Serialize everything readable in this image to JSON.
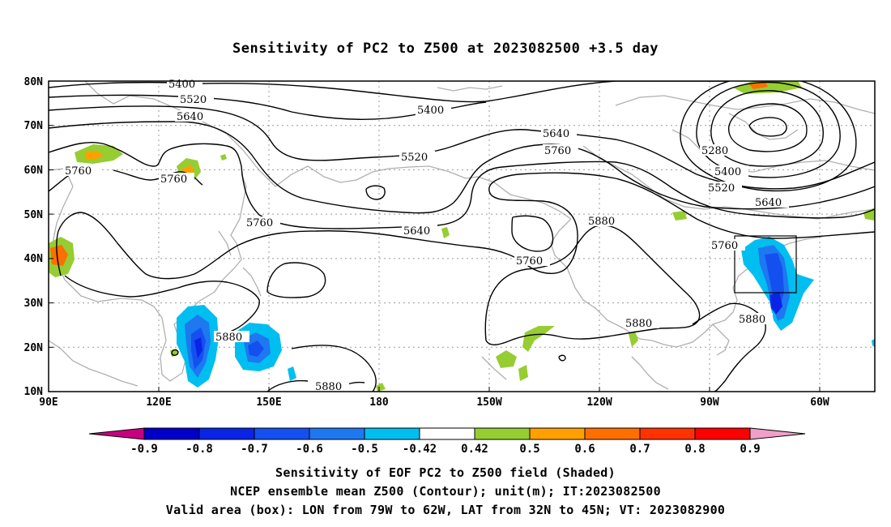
{
  "title": "Sensitivity of PC2 to Z500 at 2023082500 +3.5 day",
  "lat_labels": [
    "80N",
    "70N",
    "60N",
    "50N",
    "40N",
    "30N",
    "20N",
    "10N"
  ],
  "lon_labels": [
    "90E",
    "120E",
    "150E",
    "180",
    "150W",
    "120W",
    "90W",
    "60W"
  ],
  "contour_labels": [
    "5400",
    "5520",
    "5640",
    "5760",
    "5400",
    "5520",
    "5640",
    "5760",
    "5760",
    "5640",
    "5760",
    "5880",
    "5760",
    "5280",
    "5400",
    "5520",
    "5640",
    "5760",
    "5880",
    "5880",
    "5880",
    "5880"
  ],
  "colorbar": {
    "labels": [
      "-0.9",
      "-0.8",
      "-0.7",
      "-0.6",
      "-0.5",
      "-0.42",
      "0.42",
      "0.5",
      "0.6",
      "0.7",
      "0.8",
      "0.9"
    ],
    "colors": [
      "#c8007f",
      "#0000c8",
      "#0a24e6",
      "#1450f0",
      "#1e78f0",
      "#00bef0",
      "#ffffff",
      "#96cd32",
      "#ffa000",
      "#ff6e00",
      "#ff3200",
      "#ff0000",
      "#f0a0c8"
    ]
  },
  "caption": {
    "line1": "Sensitivity of EOF PC2 to Z500 field (Shaded)",
    "line2": "NCEP ensemble mean Z500 (Contour); unit(m); IT:2023082500",
    "line3": "Valid area (box): LON from 79W to 62W, LAT from 32N to 45N; VT: 2023082900"
  }
}
